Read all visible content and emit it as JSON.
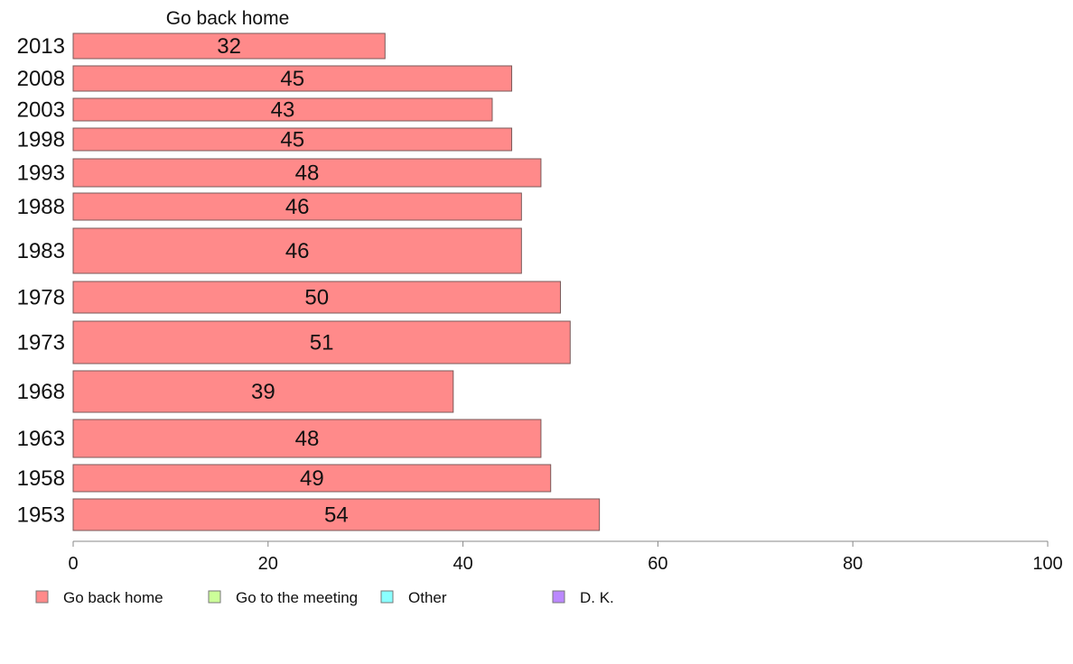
{
  "chart_data": {
    "type": "bar",
    "orientation": "horizontal",
    "title": "Go back home",
    "categories": [
      "2013",
      "2008",
      "2003",
      "1998",
      "1993",
      "1988",
      "1983",
      "1978",
      "1973",
      "1968",
      "1963",
      "1958",
      "1953"
    ],
    "series": [
      {
        "name": "Go back home",
        "color": "#ff8a8a",
        "values": [
          32,
          45,
          43,
          45,
          48,
          46,
          46,
          50,
          51,
          39,
          48,
          49,
          54
        ],
        "value_labels": [
          "32",
          "45",
          "43",
          "45",
          "48",
          "46",
          "46",
          "50",
          "51",
          "39",
          "48",
          "49",
          "54"
        ]
      }
    ],
    "xlim": [
      0,
      100
    ],
    "x_ticks": [
      "0",
      "20",
      "40",
      "60",
      "80",
      "100"
    ],
    "grid": false,
    "legend_position": "bottom-left",
    "legend": [
      {
        "label": "Go back home",
        "color": "#ff8a8a"
      },
      {
        "label": "Go to the meeting",
        "color": "#ccff99"
      },
      {
        "label": "Other",
        "color": "#8affff"
      },
      {
        "label": "D. K.",
        "color": "#bb88ff"
      }
    ]
  }
}
